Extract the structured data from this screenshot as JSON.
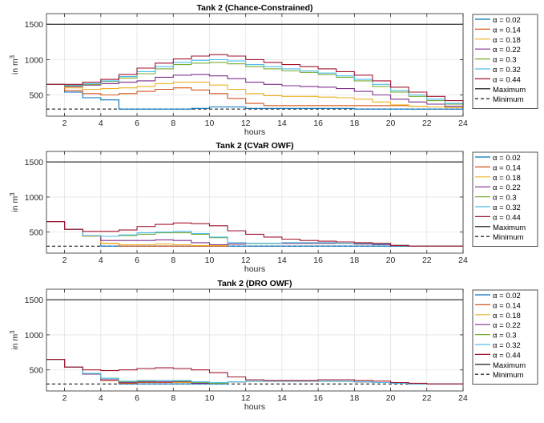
{
  "chart_data": [
    {
      "type": "line",
      "title": "Tank 2 (Chance-Constrained)",
      "xlabel": "hours",
      "ylabel": "in m",
      "ylabel_superscript": "3",
      "xlim": [
        1,
        24
      ],
      "ylim": [
        200,
        1650
      ],
      "xticks": [
        2,
        4,
        6,
        8,
        10,
        12,
        14,
        16,
        18,
        20,
        22,
        24
      ],
      "yticks": [
        500,
        1000,
        1500
      ],
      "grid": true,
      "legend_position": "outside-right",
      "x": [
        1,
        2,
        3,
        4,
        5,
        6,
        7,
        8,
        9,
        10,
        11,
        12,
        13,
        14,
        15,
        16,
        17,
        18,
        19,
        20,
        21,
        22,
        23,
        24
      ],
      "series": [
        {
          "name": "α = 0.02",
          "color": "#0072BD",
          "values": [
            650,
            540,
            460,
            430,
            300,
            300,
            300,
            300,
            310,
            330,
            330,
            310,
            310,
            310,
            310,
            310,
            310,
            300,
            300,
            300,
            300,
            300,
            300,
            300
          ]
        },
        {
          "name": "α = 0.14",
          "color": "#D95319",
          "values": [
            650,
            560,
            520,
            500,
            520,
            550,
            580,
            600,
            570,
            520,
            450,
            380,
            350,
            350,
            350,
            350,
            350,
            350,
            350,
            350,
            340,
            330,
            320,
            310
          ]
        },
        {
          "name": "α = 0.18",
          "color": "#EDB120",
          "values": [
            650,
            600,
            580,
            590,
            600,
            620,
            660,
            680,
            680,
            640,
            580,
            520,
            490,
            480,
            480,
            470,
            460,
            440,
            400,
            360,
            340,
            330,
            320,
            310
          ]
        },
        {
          "name": "α = 0.22",
          "color": "#7E2F8E",
          "values": [
            650,
            620,
            640,
            660,
            680,
            700,
            750,
            780,
            790,
            770,
            730,
            680,
            650,
            630,
            620,
            610,
            590,
            550,
            500,
            440,
            400,
            370,
            340,
            320
          ]
        },
        {
          "name": "α = 0.3",
          "color": "#77AC30",
          "values": [
            650,
            630,
            650,
            690,
            740,
            800,
            870,
            930,
            950,
            960,
            940,
            900,
            870,
            840,
            820,
            790,
            750,
            700,
            620,
            540,
            480,
            420,
            370,
            330
          ]
        },
        {
          "name": "α = 0.32",
          "color": "#4DBEEE",
          "values": [
            650,
            640,
            660,
            700,
            760,
            830,
            900,
            960,
            990,
            1000,
            980,
            930,
            900,
            870,
            840,
            810,
            770,
            720,
            650,
            560,
            500,
            440,
            380,
            340
          ]
        },
        {
          "name": "α = 0.44",
          "color": "#A2142F",
          "values": [
            650,
            650,
            680,
            720,
            790,
            880,
            950,
            1010,
            1050,
            1070,
            1050,
            1000,
            960,
            930,
            900,
            870,
            830,
            780,
            700,
            610,
            540,
            480,
            420,
            360
          ]
        }
      ],
      "reference_lines": [
        {
          "name": "Maximum",
          "value": 1500,
          "color": "#000000",
          "style": "solid"
        },
        {
          "name": "Minimum",
          "value": 300,
          "color": "#000000",
          "style": "dashed"
        }
      ]
    },
    {
      "type": "line",
      "title": "Tank 2 (CVaR OWF)",
      "xlabel": "hours",
      "ylabel": "in m",
      "ylabel_superscript": "3",
      "xlim": [
        1,
        24
      ],
      "ylim": [
        200,
        1650
      ],
      "xticks": [
        2,
        4,
        6,
        8,
        10,
        12,
        14,
        16,
        18,
        20,
        22,
        24
      ],
      "yticks": [
        500,
        1000,
        1500
      ],
      "grid": true,
      "legend_position": "outside-right",
      "x": [
        1,
        2,
        3,
        4,
        5,
        6,
        7,
        8,
        9,
        10,
        11,
        12,
        13,
        14,
        15,
        16,
        17,
        18,
        19,
        20,
        21,
        22,
        23,
        24
      ],
      "series": [
        {
          "name": "α = 0.02",
          "color": "#0072BD",
          "values": [
            650,
            540,
            440,
            300,
            300,
            300,
            300,
            300,
            300,
            300,
            300,
            300,
            300,
            300,
            300,
            300,
            300,
            300,
            300,
            300,
            300,
            300,
            300,
            300
          ]
        },
        {
          "name": "α = 0.14",
          "color": "#D95319",
          "values": [
            650,
            540,
            440,
            340,
            300,
            300,
            300,
            300,
            300,
            300,
            330,
            340,
            340,
            340,
            340,
            340,
            340,
            330,
            320,
            310,
            300,
            300,
            300,
            300
          ]
        },
        {
          "name": "α = 0.18",
          "color": "#EDB120",
          "values": [
            650,
            540,
            440,
            340,
            320,
            320,
            330,
            320,
            310,
            310,
            330,
            340,
            340,
            340,
            340,
            340,
            340,
            330,
            320,
            310,
            300,
            300,
            300,
            300
          ]
        },
        {
          "name": "α = 0.22",
          "color": "#7E2F8E",
          "values": [
            650,
            540,
            450,
            380,
            380,
            380,
            390,
            380,
            350,
            320,
            330,
            340,
            340,
            340,
            340,
            340,
            340,
            330,
            320,
            310,
            300,
            300,
            300,
            300
          ]
        },
        {
          "name": "α = 0.3",
          "color": "#77AC30",
          "values": [
            650,
            540,
            450,
            440,
            450,
            470,
            490,
            490,
            470,
            420,
            350,
            340,
            340,
            350,
            350,
            350,
            340,
            340,
            330,
            310,
            300,
            300,
            300,
            300
          ]
        },
        {
          "name": "α = 0.32",
          "color": "#4DBEEE",
          "values": [
            650,
            540,
            450,
            440,
            460,
            490,
            500,
            510,
            480,
            430,
            350,
            340,
            340,
            350,
            350,
            350,
            340,
            340,
            330,
            310,
            300,
            300,
            300,
            300
          ]
        },
        {
          "name": "α = 0.44",
          "color": "#A2142F",
          "values": [
            650,
            540,
            510,
            510,
            530,
            580,
            610,
            630,
            620,
            590,
            520,
            470,
            430,
            400,
            380,
            370,
            360,
            350,
            340,
            310,
            300,
            300,
            300,
            300
          ]
        }
      ],
      "reference_lines": [
        {
          "name": "Maximum",
          "value": 1500,
          "color": "#000000",
          "style": "solid"
        },
        {
          "name": "Minimum",
          "value": 300,
          "color": "#000000",
          "style": "dashed"
        }
      ]
    },
    {
      "type": "line",
      "title": "Tank 2 (DRO OWF)",
      "xlabel": "hours",
      "ylabel": "in m",
      "ylabel_superscript": "3",
      "xlim": [
        1,
        24
      ],
      "ylim": [
        200,
        1650
      ],
      "xticks": [
        2,
        4,
        6,
        8,
        10,
        12,
        14,
        16,
        18,
        20,
        22,
        24
      ],
      "yticks": [
        500,
        1000,
        1500
      ],
      "grid": true,
      "legend_position": "outside-right",
      "x": [
        1,
        2,
        3,
        4,
        5,
        6,
        7,
        8,
        9,
        10,
        11,
        12,
        13,
        14,
        15,
        16,
        17,
        18,
        19,
        20,
        21,
        22,
        23,
        24
      ],
      "series": [
        {
          "name": "α = 0.02",
          "color": "#0072BD",
          "values": [
            650,
            540,
            440,
            350,
            300,
            300,
            300,
            300,
            300,
            300,
            330,
            340,
            340,
            340,
            340,
            340,
            340,
            330,
            320,
            310,
            300,
            300,
            300,
            300
          ]
        },
        {
          "name": "α = 0.14",
          "color": "#D95319",
          "values": [
            650,
            540,
            440,
            350,
            310,
            320,
            320,
            320,
            310,
            310,
            330,
            340,
            340,
            340,
            340,
            340,
            340,
            330,
            320,
            310,
            300,
            300,
            300,
            300
          ]
        },
        {
          "name": "α = 0.18",
          "color": "#EDB120",
          "values": [
            650,
            540,
            440,
            360,
            320,
            330,
            330,
            320,
            310,
            310,
            330,
            340,
            340,
            340,
            340,
            340,
            340,
            330,
            320,
            310,
            300,
            300,
            300,
            300
          ]
        },
        {
          "name": "α = 0.22",
          "color": "#7E2F8E",
          "values": [
            650,
            540,
            440,
            360,
            320,
            330,
            330,
            330,
            310,
            310,
            330,
            340,
            340,
            340,
            340,
            340,
            340,
            330,
            320,
            310,
            300,
            300,
            300,
            300
          ]
        },
        {
          "name": "α = 0.3",
          "color": "#77AC30",
          "values": [
            650,
            540,
            450,
            380,
            330,
            340,
            350,
            340,
            320,
            310,
            330,
            340,
            340,
            340,
            340,
            340,
            340,
            330,
            320,
            310,
            300,
            300,
            300,
            300
          ]
        },
        {
          "name": "α = 0.32",
          "color": "#4DBEEE",
          "values": [
            650,
            540,
            450,
            380,
            340,
            350,
            350,
            350,
            330,
            320,
            330,
            340,
            340,
            340,
            340,
            340,
            340,
            330,
            320,
            310,
            300,
            300,
            300,
            300
          ]
        },
        {
          "name": "α = 0.44",
          "color": "#A2142F",
          "values": [
            650,
            540,
            500,
            490,
            500,
            520,
            530,
            520,
            500,
            460,
            400,
            360,
            350,
            350,
            350,
            360,
            360,
            350,
            340,
            320,
            310,
            300,
            300,
            300
          ]
        }
      ],
      "reference_lines": [
        {
          "name": "Maximum",
          "value": 1500,
          "color": "#000000",
          "style": "solid"
        },
        {
          "name": "Minimum",
          "value": 300,
          "color": "#000000",
          "style": "dashed"
        }
      ]
    }
  ]
}
